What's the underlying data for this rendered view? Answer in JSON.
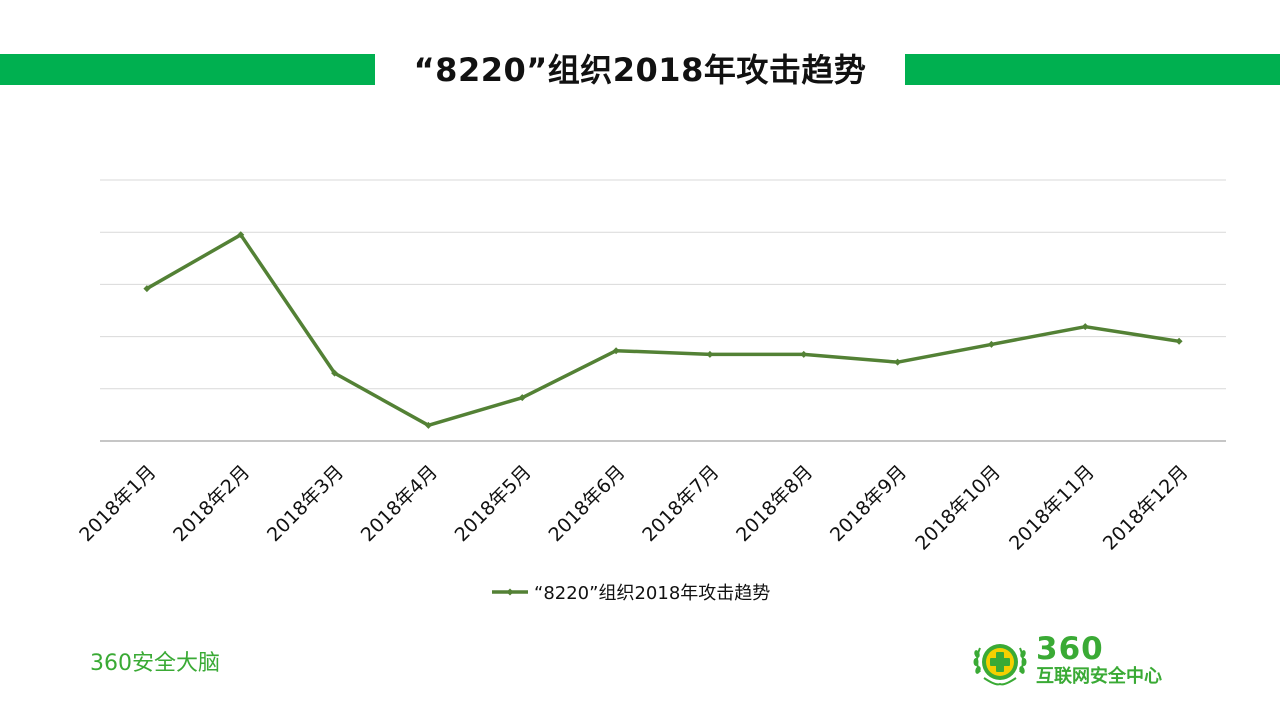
{
  "slide": {
    "title": "“8220”组织2018年攻击趋势",
    "footer_text": "360安全大脑",
    "logo": {
      "number": "360",
      "name": "互联网安全中心"
    }
  },
  "colors": {
    "accent": "#00b050",
    "series_line": "#538135",
    "gridline": "#d9d9d9",
    "axis": "#8c8c8c",
    "logo_green": "#3aaa35",
    "logo_yellow": "#f5d000"
  },
  "chart_data": {
    "type": "line",
    "title": "",
    "xlabel": "",
    "ylabel": "",
    "categories": [
      "2018年1月",
      "2018年2月",
      "2018年3月",
      "2018年4月",
      "2018年5月",
      "2018年6月",
      "2018年7月",
      "2018年8月",
      "2018年9月",
      "2018年10月",
      "2018年11月",
      "2018年12月"
    ],
    "series": [
      {
        "name": "“8220”组织2018年攻击趋势",
        "values": [
          2.92,
          3.95,
          1.3,
          0.3,
          0.83,
          1.73,
          1.66,
          1.66,
          1.51,
          1.85,
          2.19,
          1.91
        ]
      }
    ],
    "ylim": [
      0,
      5
    ],
    "gridlines": 5,
    "y_tick_labels_shown": false,
    "grid": true,
    "legend_position": "bottom"
  }
}
